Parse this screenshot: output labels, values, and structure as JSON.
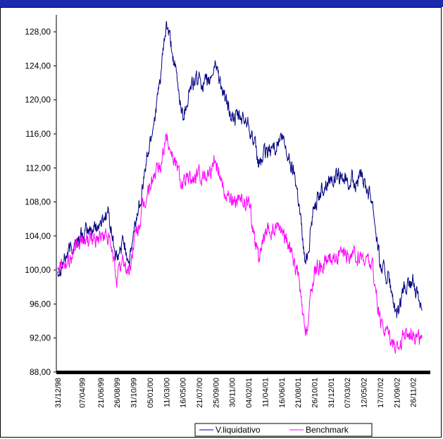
{
  "chart_data": {
    "type": "line",
    "title": "",
    "xlabel": "",
    "ylabel": "",
    "ylim": [
      88,
      130
    ],
    "y_ticks": [
      "88,00",
      "92,00",
      "96,00",
      "100,00",
      "104,00",
      "108,00",
      "112,00",
      "116,00",
      "120,00",
      "124,00",
      "128,00"
    ],
    "x_ticks": [
      "31/12/98",
      "07/04/99",
      "21/06/99",
      "26/08/99",
      "31/10/99",
      "05/01/00",
      "11/03/00",
      "16/05/00",
      "21/07/00",
      "25/09/00",
      "30/11/00",
      "04/02/01",
      "11/04/01",
      "16/06/01",
      "21/08/01",
      "26/10/01",
      "31/12/01",
      "07/03/02",
      "12/05/02",
      "17/07/02",
      "21/09/02",
      "26/11/02"
    ],
    "grid": false,
    "legend_position": "bottom",
    "series": [
      {
        "name": "V.liquidativo",
        "color": "#000080",
        "points": [
          [
            "31/12/98",
            100.0
          ],
          [
            "20/02/99",
            102.5
          ],
          [
            "07/04/99",
            104.0
          ],
          [
            "21/06/99",
            105.5
          ],
          [
            "20/07/99",
            107.0
          ],
          [
            "15/08/99",
            102.5
          ],
          [
            "26/08/99",
            100.8
          ],
          [
            "20/09/99",
            103.5
          ],
          [
            "15/10/99",
            101.0
          ],
          [
            "31/10/99",
            104.0
          ],
          [
            "05/01/00",
            115.0
          ],
          [
            "10/02/00",
            121.0
          ],
          [
            "11/03/00",
            128.8
          ],
          [
            "01/04/00",
            126.0
          ],
          [
            "16/05/00",
            118.0
          ],
          [
            "15/06/00",
            121.5
          ],
          [
            "21/07/00",
            122.5
          ],
          [
            "25/08/00",
            121.5
          ],
          [
            "25/09/00",
            124.5
          ],
          [
            "30/10/00",
            120.0
          ],
          [
            "30/11/00",
            118.0
          ],
          [
            "04/02/01",
            117.5
          ],
          [
            "15/03/01",
            112.5
          ],
          [
            "11/04/01",
            113.5
          ],
          [
            "16/06/01",
            115.5
          ],
          [
            "10/08/01",
            111.0
          ],
          [
            "21/08/01",
            109.0
          ],
          [
            "20/09/01",
            100.5
          ],
          [
            "26/10/01",
            108.0
          ],
          [
            "31/12/01",
            111.0
          ],
          [
            "07/03/02",
            110.5
          ],
          [
            "12/05/02",
            110.5
          ],
          [
            "15/06/02",
            108.5
          ],
          [
            "17/07/02",
            100.5
          ],
          [
            "20/08/02",
            99.0
          ],
          [
            "21/09/02",
            94.0
          ],
          [
            "20/10/02",
            97.5
          ],
          [
            "26/11/02",
            98.5
          ],
          [
            "31/12/02",
            96.0
          ]
        ]
      },
      {
        "name": "Benchmark",
        "color": "#ff00ff",
        "points": [
          [
            "31/12/98",
            101.0
          ],
          [
            "20/02/99",
            101.5
          ],
          [
            "07/04/99",
            103.5
          ],
          [
            "21/06/99",
            104.0
          ],
          [
            "20/07/99",
            104.0
          ],
          [
            "15/08/99",
            100.5
          ],
          [
            "26/08/99",
            99.0
          ],
          [
            "20/09/99",
            101.0
          ],
          [
            "15/10/99",
            99.5
          ],
          [
            "31/10/99",
            103.0
          ],
          [
            "05/01/00",
            110.0
          ],
          [
            "10/02/00",
            112.0
          ],
          [
            "11/03/00",
            115.5
          ],
          [
            "01/04/00",
            114.0
          ],
          [
            "16/05/00",
            110.0
          ],
          [
            "15/06/00",
            110.5
          ],
          [
            "21/07/00",
            111.0
          ],
          [
            "25/08/00",
            111.5
          ],
          [
            "25/09/00",
            113.0
          ],
          [
            "30/10/00",
            109.5
          ],
          [
            "30/11/00",
            108.0
          ],
          [
            "04/02/01",
            108.0
          ],
          [
            "15/03/01",
            101.5
          ],
          [
            "11/04/01",
            104.0
          ],
          [
            "16/06/01",
            105.0
          ],
          [
            "10/08/01",
            100.5
          ],
          [
            "21/08/01",
            99.5
          ],
          [
            "20/09/01",
            91.8
          ],
          [
            "26/10/01",
            100.0
          ],
          [
            "31/12/01",
            101.5
          ],
          [
            "07/03/02",
            101.5
          ],
          [
            "12/05/02",
            101.5
          ],
          [
            "15/06/02",
            100.5
          ],
          [
            "17/07/02",
            93.5
          ],
          [
            "20/08/02",
            93.0
          ],
          [
            "21/09/02",
            90.5
          ],
          [
            "20/10/02",
            92.5
          ],
          [
            "26/11/02",
            93.0
          ],
          [
            "31/12/02",
            91.5
          ]
        ]
      }
    ]
  }
}
